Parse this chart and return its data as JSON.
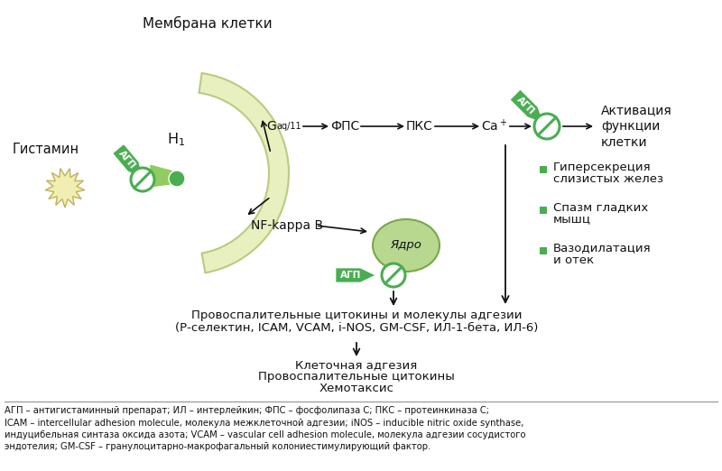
{
  "title_membrane": "Мембрана клетки",
  "label_histamine": "Гистамин",
  "label_AGP": "АГП",
  "label_Gaq_sub": "aq/11",
  "label_FPS": "ФПС",
  "label_PKS": "ПКС",
  "label_activation": "Активация\nфункции\nклетки",
  "label_NFkappa": "NF-kappa B",
  "label_nucleus": "Ядро",
  "bullet1a": "Гиперсекреция",
  "bullet1b": "слизистых желез",
  "bullet2a": "Спазм гладких",
  "bullet2b": "мышц",
  "bullet3a": "Вазодилатация",
  "bullet3b": "и отек",
  "box1_line1": "Провоспалительные цитокины и молекулы адгезии",
  "box1_line2": "(Р-селектин, ICAM, VCAM, i-NOS, GM-CSF, ИЛ-1-бета, ИЛ-6)",
  "box2_line1": "Клеточная адгезия",
  "box2_line2": "Провоспалительные цитокины",
  "box2_line3": "Хемотаксис",
  "fn1": "АГП – антигистаминный препарат; ИЛ – интерлейкин; ФПС – фосфолипаза С; ПКС – протеинкиназа С;",
  "fn2": "ICAM – intercellular adhesion molecule, молекула межклеточной адгезии; iNOS – inducible nitric oxide synthase,",
  "fn3": "индуцибельная синтаза оксида азота; VCAM – vascular cell adhesion molecule, молекула адгезии сосудистого",
  "fn4": "эндотелия; GM-CSF – гранулоцитарно-макрофагальный колониестимулирующий фактор.",
  "color_green_dark": "#4aad52",
  "color_green_light": "#d8eea8",
  "color_green_blocker_bg": "#c8e898",
  "color_membrane_fill": "#e8f0c0",
  "color_membrane_edge": "#b8cc80",
  "color_nucleus_fill": "#b8d890",
  "color_nucleus_edge": "#78a848",
  "color_star_fill": "#f0eeb0",
  "color_star_edge": "#c0b060",
  "bg_color": "#ffffff",
  "text_color": "#111111"
}
